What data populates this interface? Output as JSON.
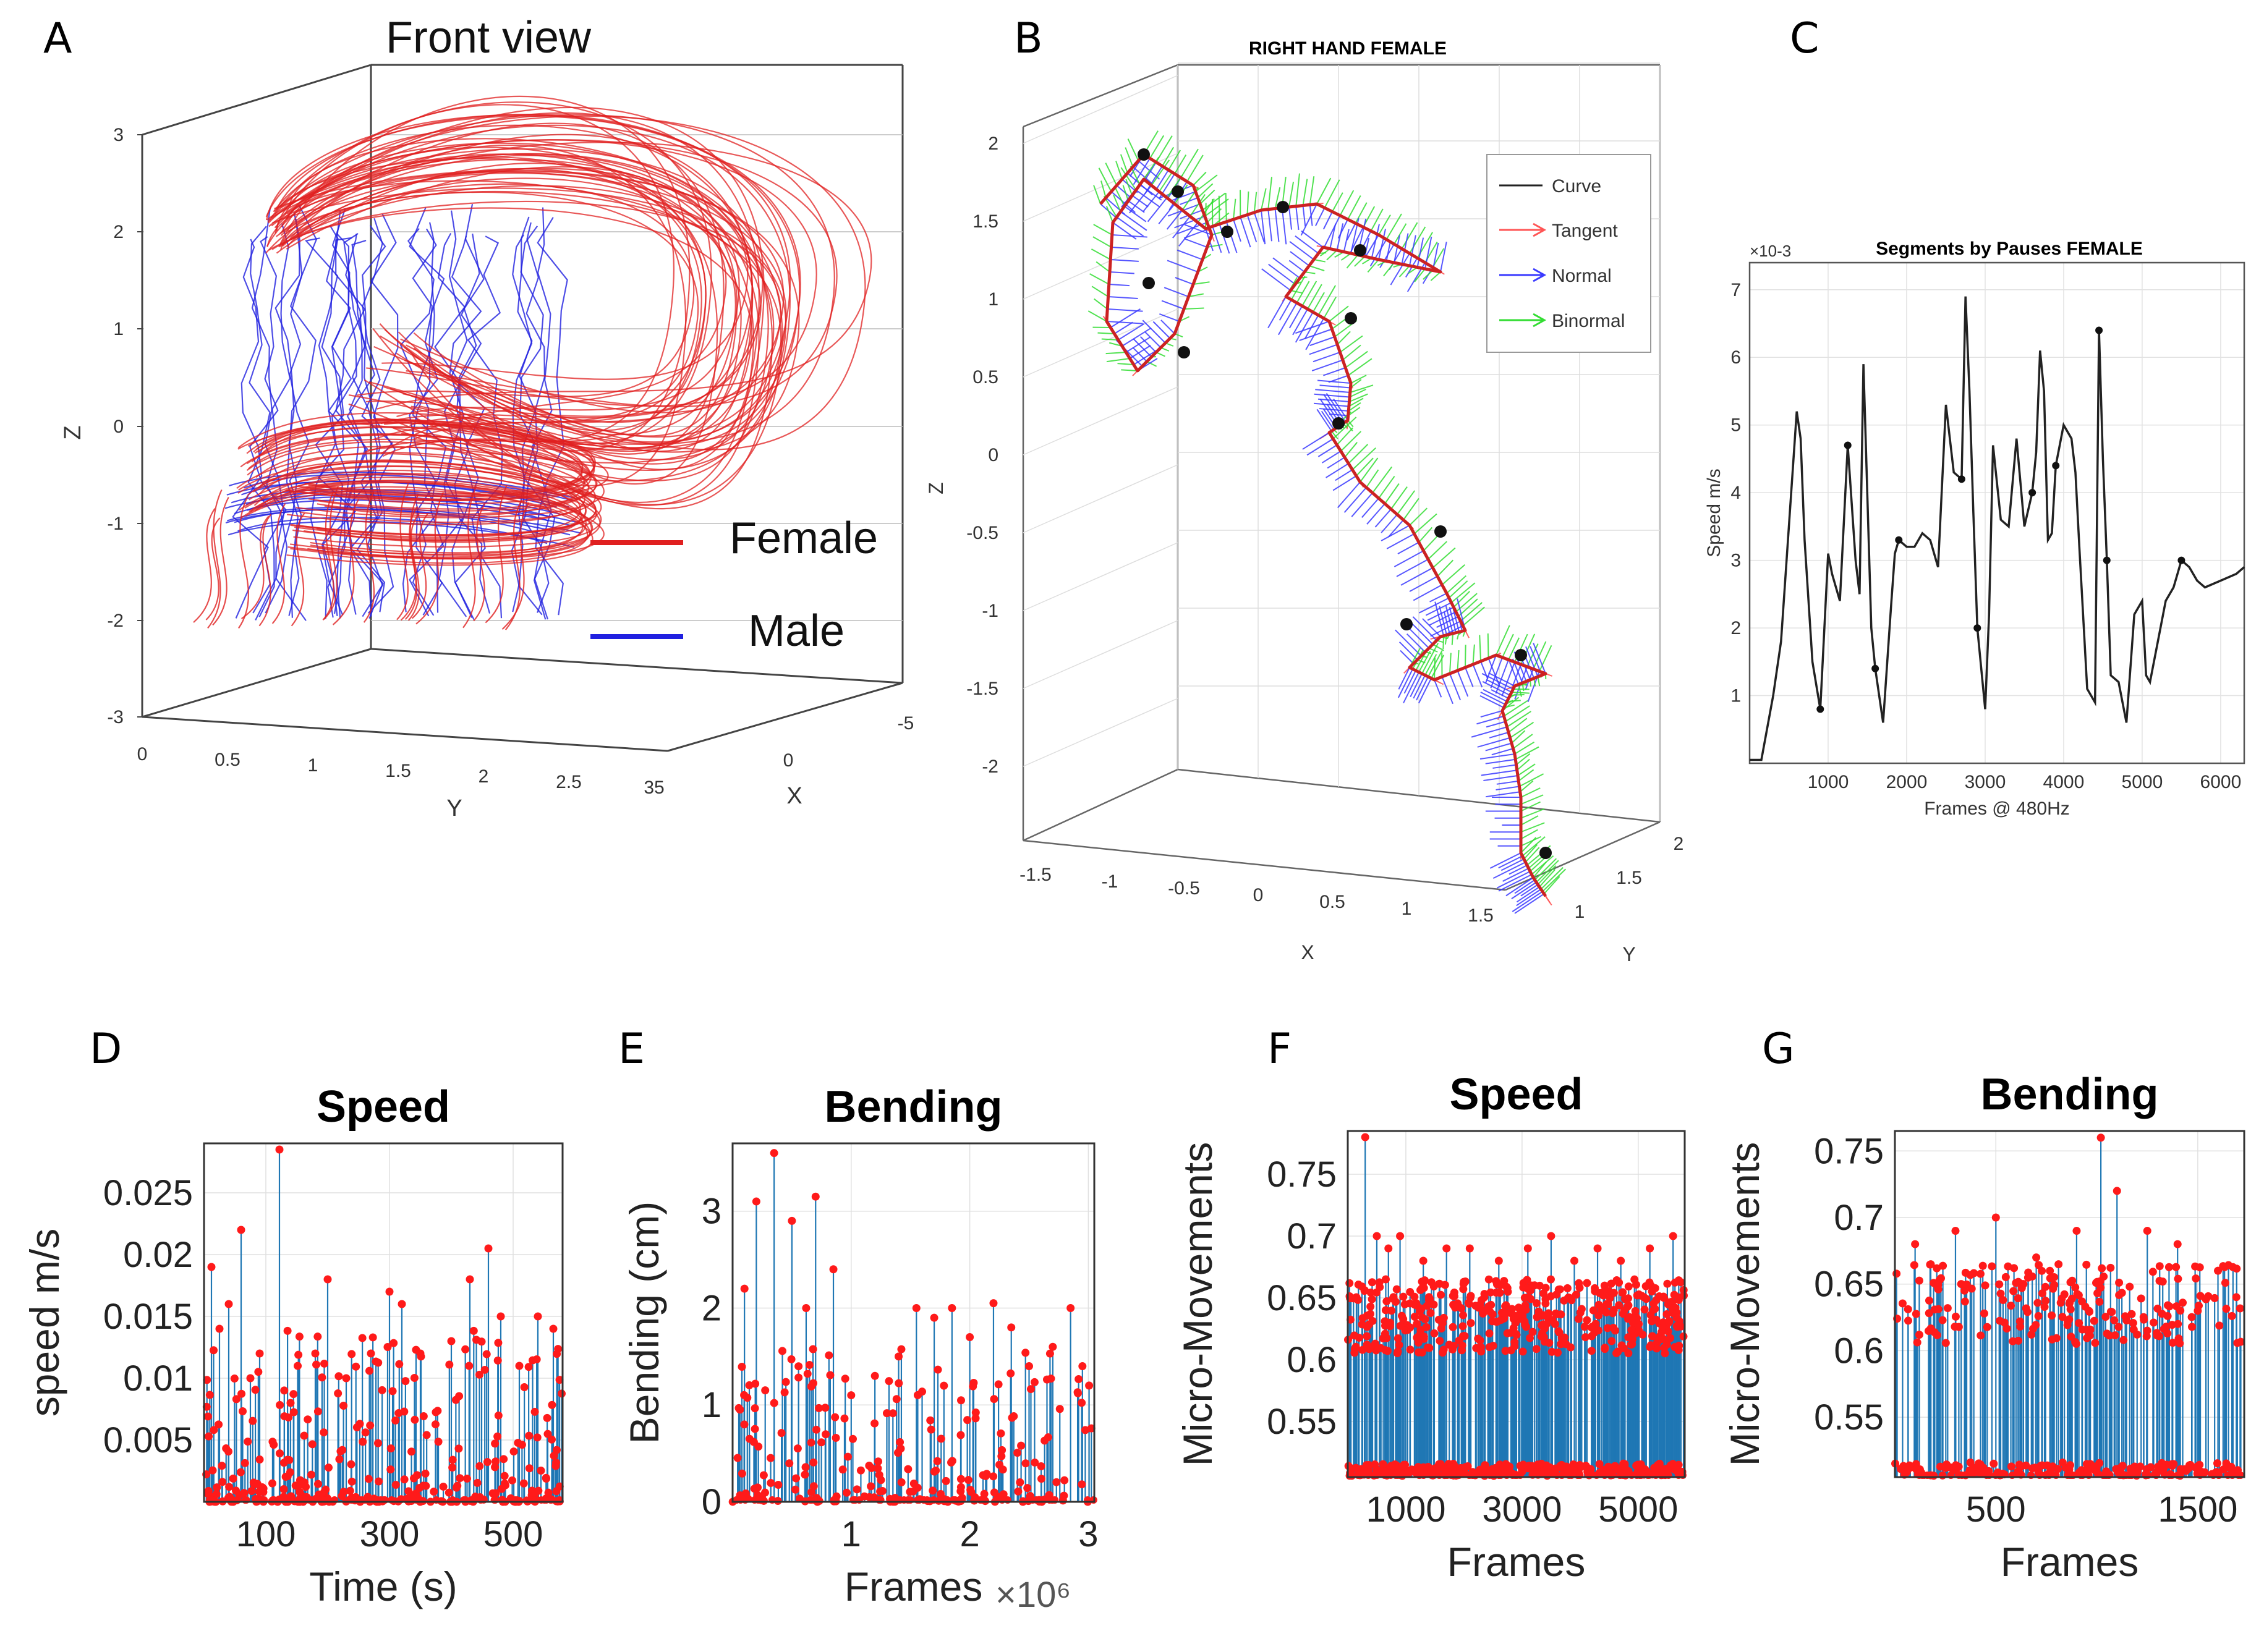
{
  "panel_letters": {
    "A": "A",
    "B": "B",
    "C": "C",
    "D": "D",
    "E": "E",
    "F": "F",
    "G": "G"
  },
  "colors": {
    "female": "#e02020",
    "male": "#2020e0",
    "stem": "#1f77b4",
    "marker": "#ff1a1a",
    "curve": "#222222",
    "tangent": "#ff5555",
    "normal": "#3a3aff",
    "binormal": "#33dd33"
  },
  "chart_data": [
    {
      "id": "A",
      "type": "line3d",
      "title": "Front view",
      "xlabel": "Y",
      "ylabel": "X",
      "zlabel": "Z",
      "z_ticks": [
        "3",
        "2",
        "1",
        "0",
        "-1",
        "-2",
        "-3"
      ],
      "y_ticks": [
        "0",
        "0.5",
        "1",
        "1.5",
        "2",
        "2.5",
        "35"
      ],
      "x_ticks": [
        "0",
        "-5"
      ],
      "legend": [
        {
          "label": "Female",
          "color": "#e02020"
        },
        {
          "label": "Male",
          "color": "#2020e0"
        }
      ]
    },
    {
      "id": "B",
      "type": "line3d",
      "title": "RIGHT HAND FEMALE",
      "xlabel": "X",
      "ylabel": "Y",
      "zlabel": "Z",
      "z_ticks": [
        "2",
        "1.5",
        "1",
        "0.5",
        "0",
        "-0.5",
        "-1",
        "-1.5",
        "-2"
      ],
      "x_ticks": [
        "-1.5",
        "-1",
        "-0.5",
        "0",
        "0.5",
        "1",
        "1.5"
      ],
      "y_ticks": [
        "1",
        "1.5",
        "2"
      ],
      "legend": [
        {
          "label": "Curve"
        },
        {
          "label": "Tangent"
        },
        {
          "label": "Normal"
        },
        {
          "label": "Binormal"
        }
      ]
    },
    {
      "id": "C",
      "type": "line",
      "title": "Segments by Pauses FEMALE",
      "xlabel": "Frames @ 480Hz",
      "ylabel": "Speed m/s",
      "exponent": "×10-3",
      "xlim": [
        0,
        6300
      ],
      "ylim": [
        0,
        7.4
      ],
      "x_ticks": [
        1000,
        2000,
        3000,
        4000,
        5000,
        6000
      ],
      "y_ticks": [
        1,
        2,
        3,
        4,
        5,
        6,
        7
      ],
      "x": [
        0,
        150,
        300,
        400,
        500,
        600,
        650,
        700,
        800,
        900,
        1000,
        1050,
        1150,
        1250,
        1350,
        1400,
        1450,
        1550,
        1600,
        1700,
        1800,
        1850,
        1900,
        2000,
        2100,
        2200,
        2300,
        2400,
        2500,
        2600,
        2700,
        2750,
        2800,
        2850,
        2900,
        3000,
        3050,
        3100,
        3200,
        3300,
        3400,
        3500,
        3600,
        3650,
        3700,
        3750,
        3800,
        3850,
        3900,
        4000,
        4100,
        4150,
        4200,
        4300,
        4400,
        4450,
        4500,
        4550,
        4600,
        4700,
        4800,
        4900,
        5000,
        5050,
        5100,
        5200,
        5300,
        5400,
        5450,
        5500,
        5600,
        5700,
        5800,
        6000,
        6200,
        6300
      ],
      "y": [
        0.05,
        0.05,
        1.0,
        1.8,
        3.5,
        5.2,
        4.8,
        3.3,
        1.5,
        0.8,
        3.1,
        2.8,
        2.4,
        4.7,
        3.0,
        2.5,
        5.9,
        2.0,
        1.4,
        0.6,
        2.3,
        3.1,
        3.3,
        3.2,
        3.2,
        3.4,
        3.3,
        2.9,
        5.3,
        4.3,
        4.2,
        6.9,
        5.5,
        3.7,
        2.0,
        0.8,
        2.2,
        4.7,
        3.6,
        3.5,
        4.8,
        3.5,
        4.0,
        4.6,
        6.1,
        5.5,
        3.3,
        3.4,
        4.4,
        5.0,
        4.8,
        4.3,
        3.2,
        1.1,
        0.9,
        6.4,
        4.5,
        3.0,
        1.3,
        1.2,
        0.6,
        2.2,
        2.4,
        1.3,
        1.2,
        1.8,
        2.4,
        2.6,
        2.8,
        3.0,
        2.9,
        2.7,
        2.6,
        2.7,
        2.8,
        2.9
      ],
      "pause_markers_x": [
        900,
        1250,
        1600,
        1900,
        2700,
        2900,
        3600,
        3950,
        4450,
        4550,
        5500
      ]
    },
    {
      "id": "D",
      "type": "stem",
      "title": "Speed",
      "xlabel": "Time (s)",
      "ylabel": "speed m/s",
      "xlim": [
        0,
        580
      ],
      "ylim": [
        0,
        0.029
      ],
      "x_ticks": [
        100,
        300,
        500
      ],
      "y_ticks": [
        "0.005",
        "0.01",
        "0.015",
        "0.02",
        "0.025"
      ],
      "y_tick_values": [
        0.005,
        0.01,
        0.015,
        0.02,
        0.025
      ],
      "peaks": [
        [
          12,
          0.019
        ],
        [
          25,
          0.014
        ],
        [
          40,
          0.016
        ],
        [
          60,
          0.022
        ],
        [
          75,
          0.01
        ],
        [
          90,
          0.012
        ],
        [
          122,
          0.0285
        ],
        [
          140,
          0.008
        ],
        [
          180,
          0.012
        ],
        [
          200,
          0.018
        ],
        [
          230,
          0.01
        ],
        [
          270,
          0.012
        ],
        [
          300,
          0.017
        ],
        [
          320,
          0.016
        ],
        [
          350,
          0.012
        ],
        [
          400,
          0.013
        ],
        [
          430,
          0.018
        ],
        [
          460,
          0.0205
        ],
        [
          480,
          0.015
        ],
        [
          510,
          0.011
        ],
        [
          540,
          0.015
        ],
        [
          565,
          0.014
        ]
      ],
      "n_points": 320,
      "seed": 4
    },
    {
      "id": "E",
      "type": "stem",
      "title": "Bending",
      "xlabel": "Frames",
      "ylabel": "Bending (cm)",
      "exponent": "×10⁶",
      "xlim": [
        0,
        3.05
      ],
      "ylim": [
        0,
        3.7
      ],
      "x_ticks": [
        1,
        2,
        3
      ],
      "y_ticks": [
        "0",
        "1",
        "2",
        "3"
      ],
      "y_tick_values": [
        0,
        1,
        2,
        3
      ],
      "peaks": [
        [
          0.1,
          2.2
        ],
        [
          0.2,
          3.1
        ],
        [
          0.35,
          3.6
        ],
        [
          0.5,
          2.9
        ],
        [
          0.62,
          2.0
        ],
        [
          0.7,
          3.15
        ],
        [
          0.85,
          2.4
        ],
        [
          1.0,
          1.1
        ],
        [
          1.2,
          1.3
        ],
        [
          1.4,
          1.5
        ],
        [
          1.55,
          2.0
        ],
        [
          1.7,
          1.9
        ],
        [
          1.85,
          2.0
        ],
        [
          2.0,
          1.7
        ],
        [
          2.2,
          2.05
        ],
        [
          2.35,
          1.8
        ],
        [
          2.5,
          1.4
        ],
        [
          2.7,
          1.6
        ],
        [
          2.85,
          2.0
        ],
        [
          2.95,
          1.4
        ]
      ],
      "n_points": 220,
      "seed": 9
    },
    {
      "id": "F",
      "type": "stem",
      "title": "Speed",
      "xlabel": "Frames",
      "ylabel": "Micro-Movements",
      "xlim": [
        0,
        5800
      ],
      "ylim": [
        0.505,
        0.785
      ],
      "x_ticks": [
        1000,
        3000,
        5000
      ],
      "y_ticks": [
        "0.55",
        "0.6",
        "0.65",
        "0.7",
        "0.75"
      ],
      "y_tick_values": [
        0.55,
        0.6,
        0.65,
        0.7,
        0.75
      ],
      "peaks": [
        [
          300,
          0.78
        ],
        [
          500,
          0.7
        ],
        [
          700,
          0.69
        ],
        [
          900,
          0.7
        ],
        [
          1300,
          0.68
        ],
        [
          1700,
          0.69
        ],
        [
          2100,
          0.69
        ],
        [
          2600,
          0.68
        ],
        [
          3100,
          0.69
        ],
        [
          3500,
          0.7
        ],
        [
          3900,
          0.68
        ],
        [
          4300,
          0.69
        ],
        [
          4700,
          0.68
        ],
        [
          5200,
          0.69
        ],
        [
          5600,
          0.7
        ]
      ],
      "n_points": 700,
      "seed": 13
    },
    {
      "id": "G",
      "type": "stem",
      "title": "Bending",
      "xlabel": "Frames",
      "ylabel": "Micro-Movements",
      "xlim": [
        0,
        1730
      ],
      "ylim": [
        0.505,
        0.765
      ],
      "x_ticks": [
        500,
        1500
      ],
      "y_ticks": [
        "0.55",
        "0.6",
        "0.65",
        "0.7",
        "0.75"
      ],
      "y_tick_values": [
        0.55,
        0.6,
        0.65,
        0.7,
        0.75
      ],
      "peaks": [
        [
          100,
          0.68
        ],
        [
          300,
          0.69
        ],
        [
          500,
          0.7
        ],
        [
          700,
          0.67
        ],
        [
          900,
          0.69
        ],
        [
          1020,
          0.76
        ],
        [
          1100,
          0.72
        ],
        [
          1250,
          0.69
        ],
        [
          1400,
          0.68
        ],
        [
          1600,
          0.66
        ]
      ],
      "n_points": 360,
      "seed": 21
    }
  ]
}
